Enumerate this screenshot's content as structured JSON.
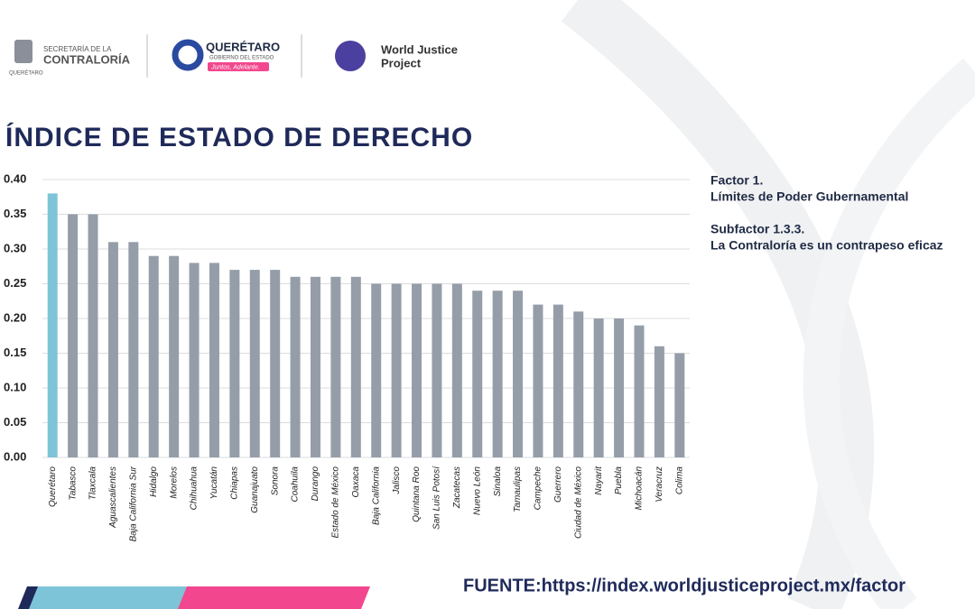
{
  "header": {
    "secretaria_line1": "SECRETARÍA DE LA",
    "secretaria_line2": "CONTRALORÍA",
    "secretaria_small": "QUERÉTARO",
    "queretaro_name": "QUERÉTARO",
    "queretaro_sub": "GOBIERNO DEL ESTADO",
    "queretaro_slogan": "Juntos, Adelante.",
    "wjp_line1": "World Justice",
    "wjp_line2": "Project"
  },
  "chart_data": {
    "type": "bar",
    "title": "ÍNDICE DE ESTADO DE DERECHO",
    "categories": [
      "Querétaro",
      "Tabasco",
      "Tlaxcala",
      "Aguascalientes",
      "Baja California Sur",
      "Hidalgo",
      "Morelos",
      "Chihuahua",
      "Yucatán",
      "Chiapas",
      "Guanajuato",
      "Sonora",
      "Coahuila",
      "Durango",
      "Estado de México",
      "Oaxaca",
      "Baja California",
      "Jalisco",
      "Quintana Roo",
      "San Luis Potosí",
      "Zacatecas",
      "Nuevo León",
      "Sinaloa",
      "Tamaulipas",
      "Campeche",
      "Guerrero",
      "Ciudad de México",
      "Nayarit",
      "Puebla",
      "Michoacán",
      "Veracruz",
      "Colima"
    ],
    "values": [
      0.38,
      0.35,
      0.35,
      0.31,
      0.31,
      0.29,
      0.29,
      0.28,
      0.28,
      0.27,
      0.27,
      0.27,
      0.26,
      0.26,
      0.26,
      0.26,
      0.25,
      0.25,
      0.25,
      0.25,
      0.25,
      0.24,
      0.24,
      0.24,
      0.22,
      0.22,
      0.21,
      0.2,
      0.2,
      0.19,
      0.16,
      0.15
    ],
    "colors": [
      "#7ec4d8",
      "#959ea8",
      "#959ea8",
      "#959ea8",
      "#959ea8",
      "#959ea8",
      "#959ea8",
      "#959ea8",
      "#959ea8",
      "#959ea8",
      "#959ea8",
      "#959ea8",
      "#959ea8",
      "#959ea8",
      "#959ea8",
      "#959ea8",
      "#959ea8",
      "#959ea8",
      "#959ea8",
      "#959ea8",
      "#959ea8",
      "#959ea8",
      "#959ea8",
      "#959ea8",
      "#959ea8",
      "#959ea8",
      "#959ea8",
      "#959ea8",
      "#959ea8",
      "#959ea8",
      "#959ea8",
      "#959ea8"
    ],
    "ylim": [
      0,
      0.4
    ],
    "yticks": [
      {
        "value": 0,
        "label": "0.00"
      },
      0.05,
      {
        "value": 0.1,
        "label": "0.10"
      },
      0.15,
      {
        "value": 0.2,
        "label": "0.20"
      },
      0.25,
      {
        "value": 0.3,
        "label": "0.30"
      },
      0.35,
      {
        "value": 0.4,
        "label": "0.40"
      }
    ],
    "grid": true
  },
  "notes": {
    "factor": "Factor 1.",
    "factor_name": "Límites de Poder Gubernamental",
    "subfactor": "Subfactor 1.3.3.",
    "subfactor_name": "La Contraloría es un contrapeso eficaz"
  },
  "source": "FUENTE:https://index.worldjusticeproject.mx/factor"
}
